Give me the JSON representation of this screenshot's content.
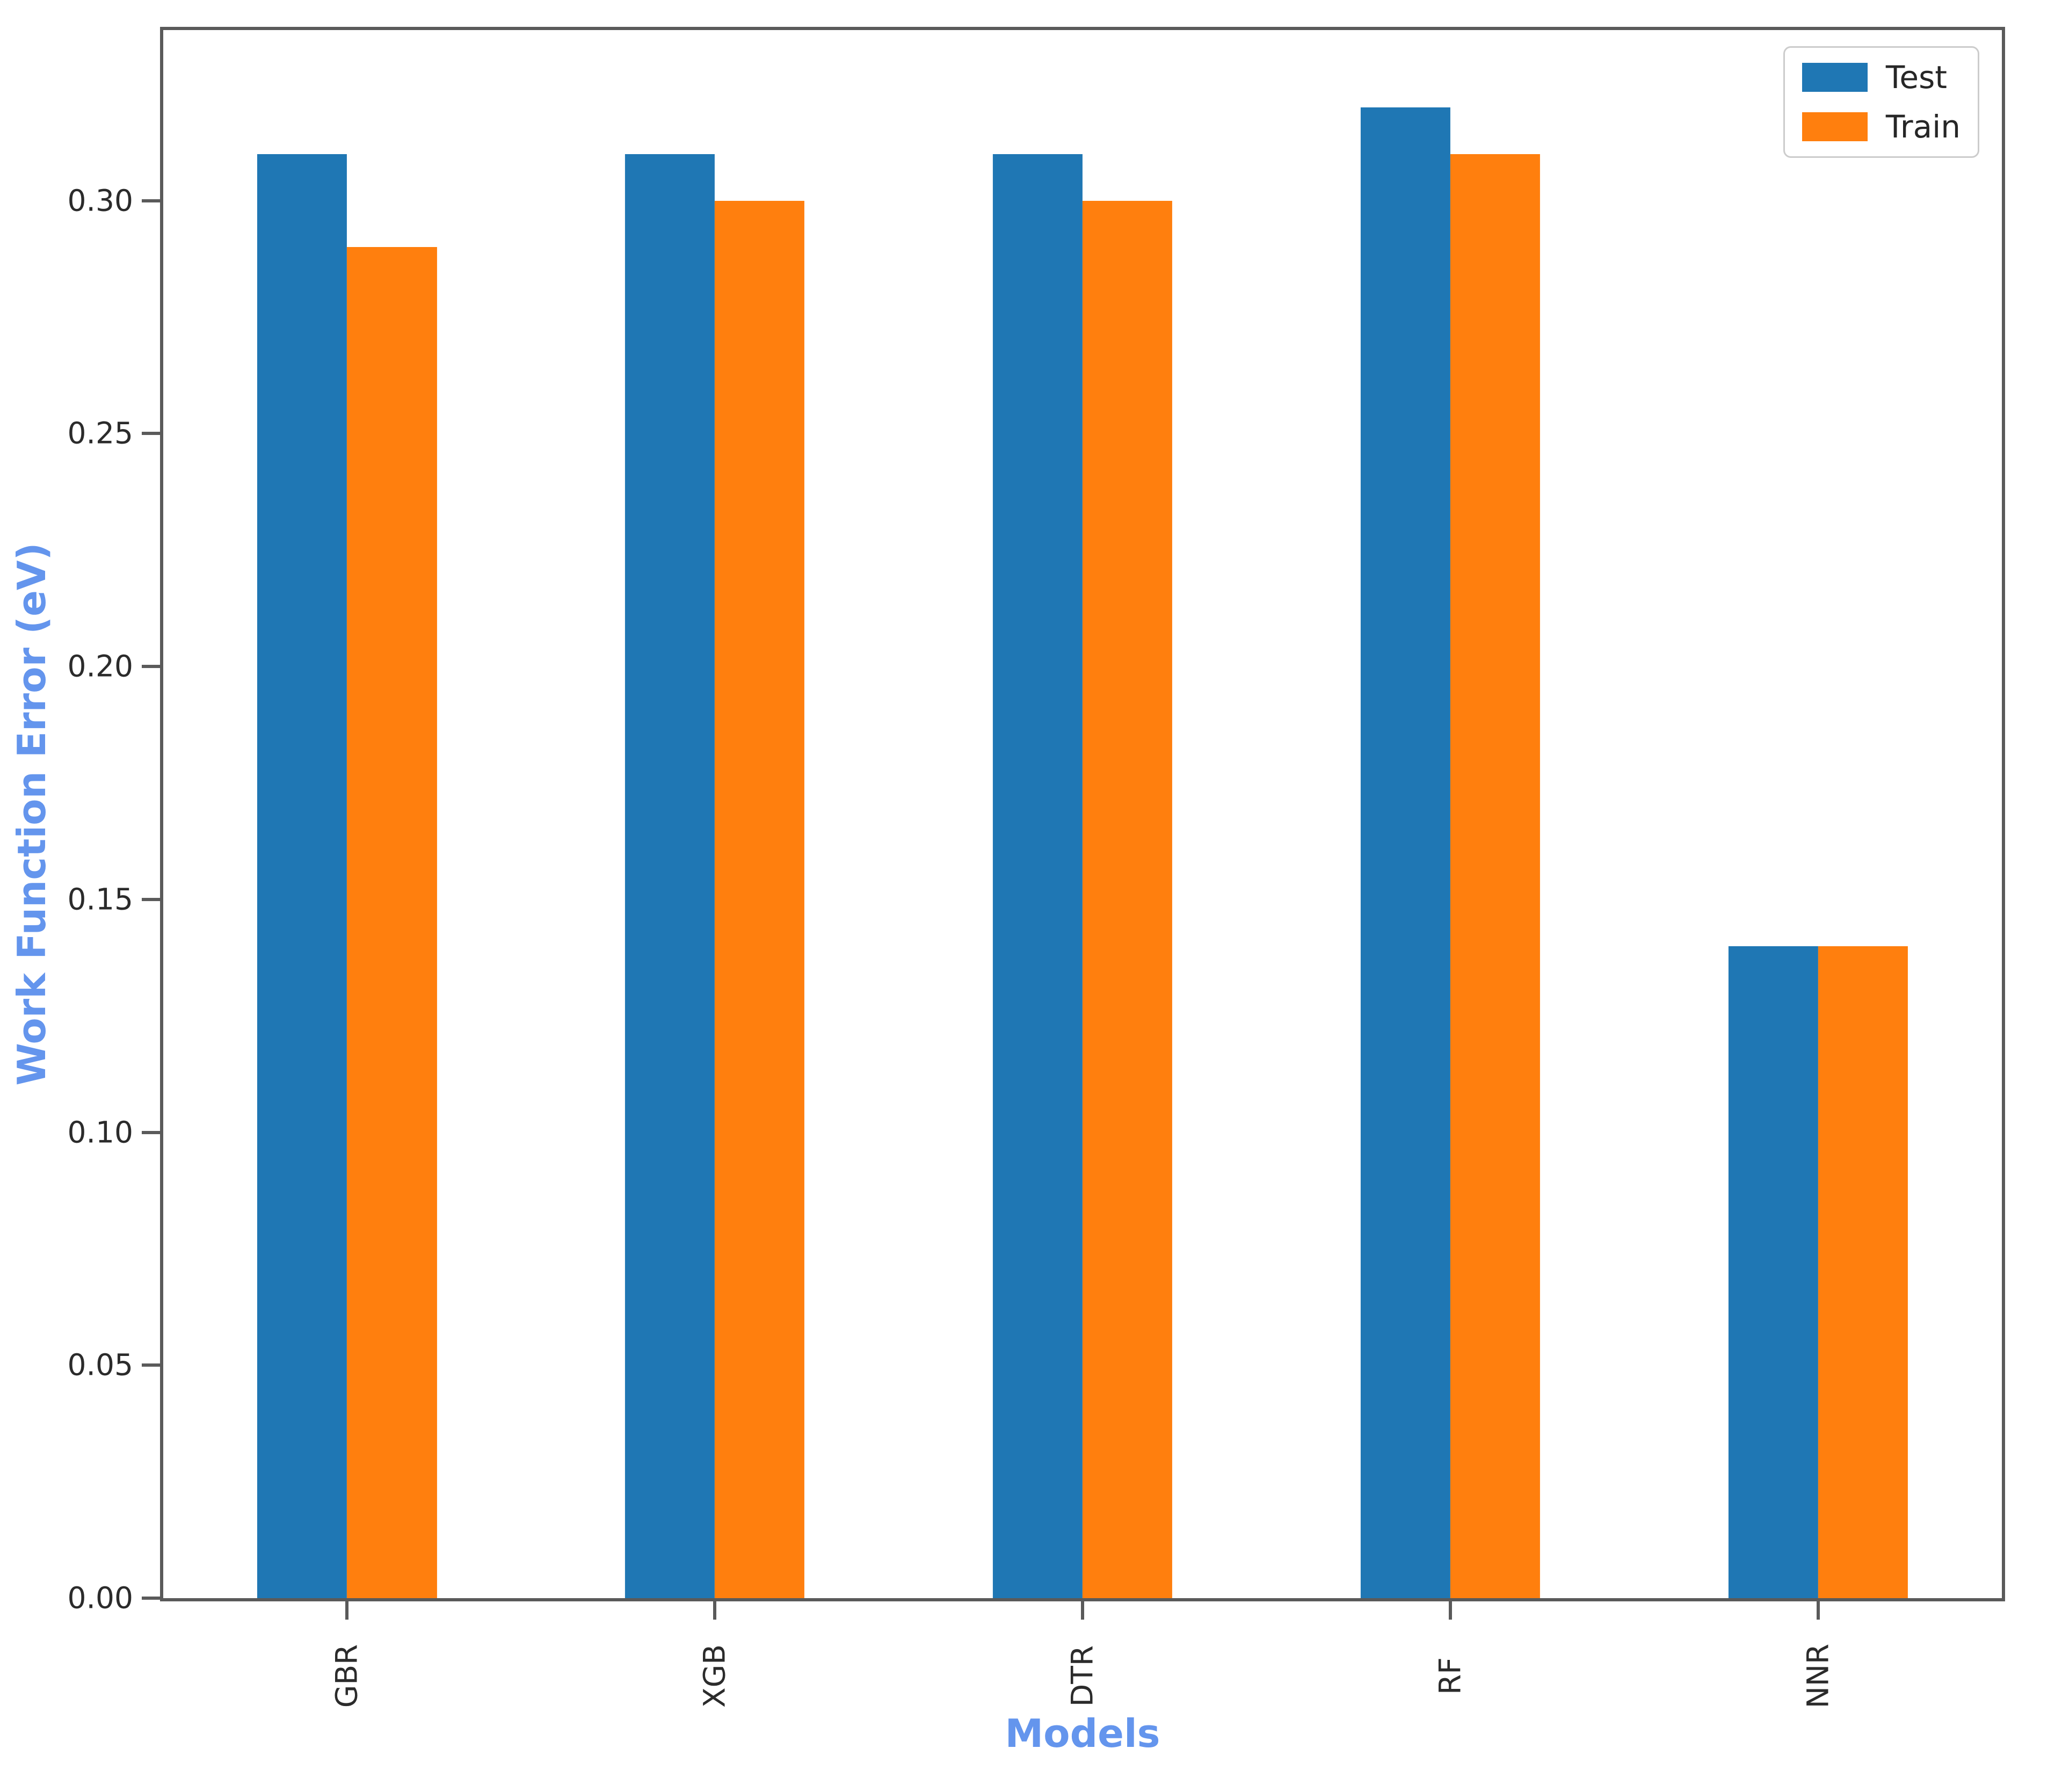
{
  "chart_data": {
    "type": "bar",
    "title": "",
    "xlabel": "Models",
    "ylabel": "Work Function Error (eV)",
    "categories": [
      "GBR",
      "XGB",
      "DTR",
      "RF",
      "NNR"
    ],
    "series": [
      {
        "name": "Test",
        "color": "#1f77b4",
        "values": [
          0.31,
          0.31,
          0.31,
          0.32,
          0.14
        ]
      },
      {
        "name": "Train",
        "color": "#ff7f0e",
        "values": [
          0.29,
          0.3,
          0.3,
          0.31,
          0.14
        ]
      }
    ],
    "y_ticks": [
      0,
      0.05,
      0.1,
      0.15,
      0.2,
      0.25,
      0.3
    ],
    "y_tick_labels": [
      "0.00",
      "0.05",
      "0.10",
      "0.15",
      "0.20",
      "0.25",
      "0.30"
    ],
    "ylim": [
      0,
      0.3366
    ],
    "bar_width_frac": 0.0488,
    "grid": false,
    "legend": {
      "position": "upper-right"
    },
    "style": {
      "axis_label_color": "#6495ED",
      "tick_label_color": "#2b2b2b",
      "spine_color": "#5a5a5a",
      "legend_border_color": "#cccccc",
      "background": "#ffffff"
    }
  }
}
